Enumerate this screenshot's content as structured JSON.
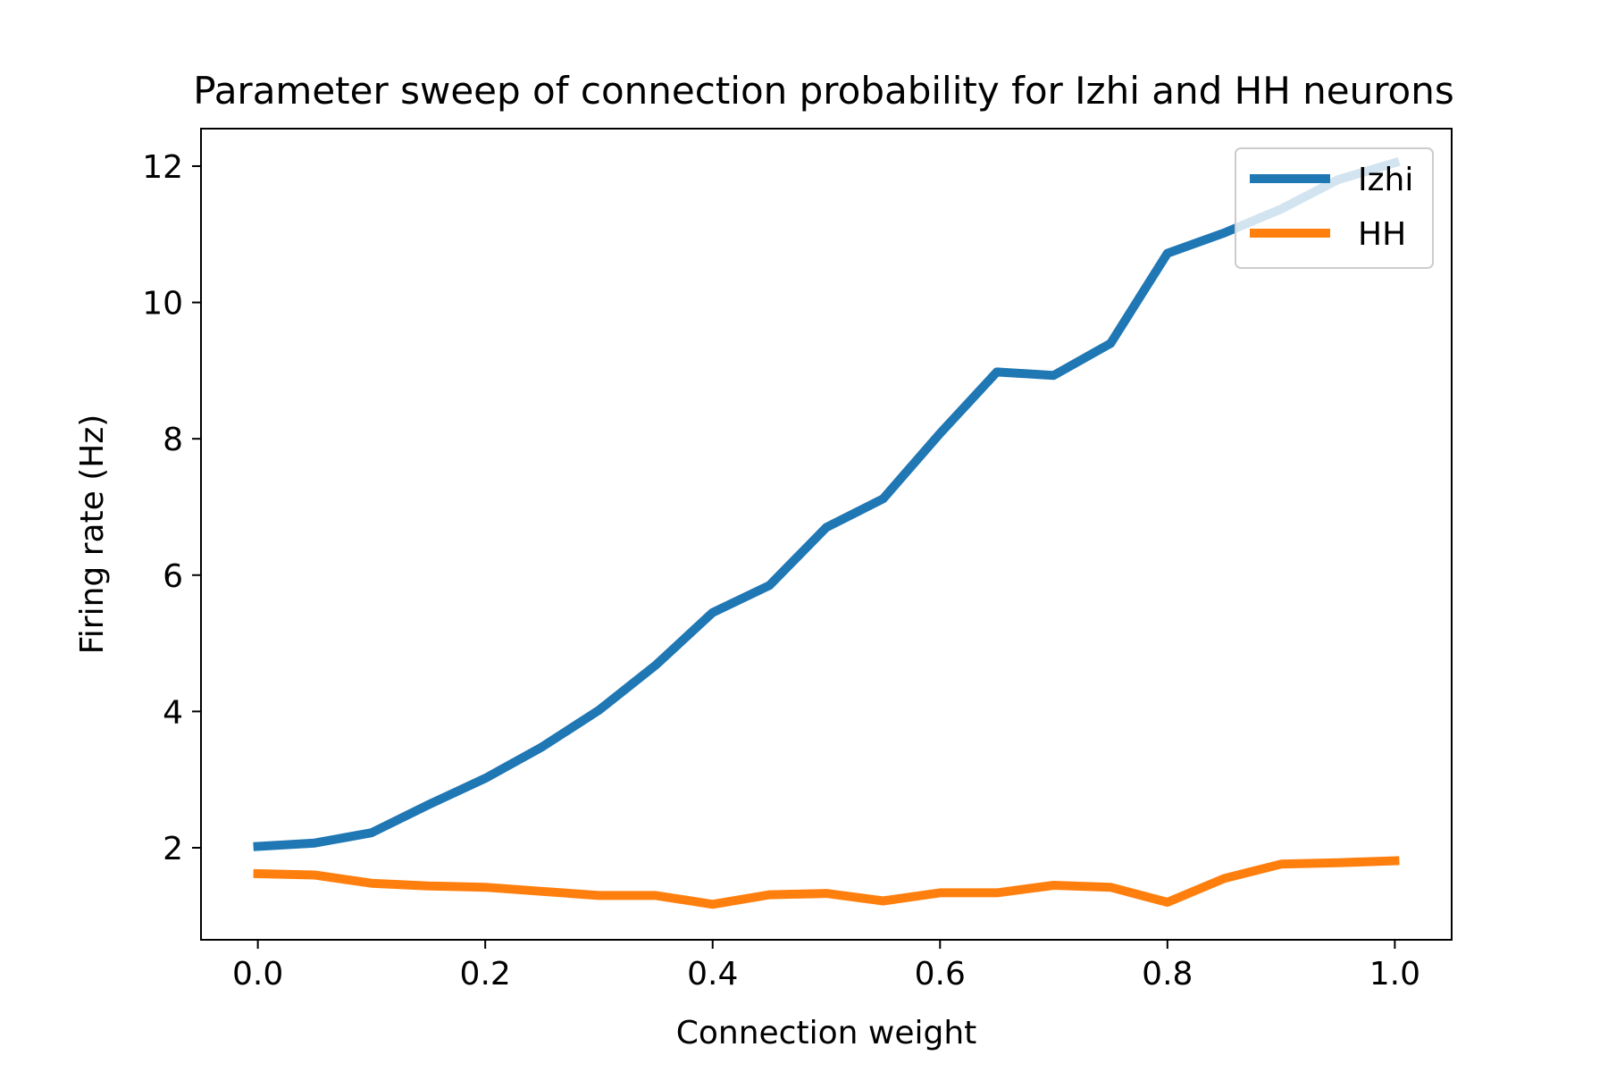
{
  "chart_data": {
    "type": "line",
    "title": "Parameter sweep of connection probability for Izhi and HH neurons",
    "xlabel": "Connection weight",
    "ylabel": "Firing rate (Hz)",
    "xlim": [
      -0.05,
      1.05
    ],
    "ylim": [
      0.65,
      12.55
    ],
    "xticks": [
      0.0,
      0.2,
      0.4,
      0.6,
      0.8,
      1.0
    ],
    "xtick_labels": [
      "0.0",
      "0.2",
      "0.4",
      "0.6",
      "0.8",
      "1.0"
    ],
    "yticks": [
      2,
      4,
      6,
      8,
      10,
      12
    ],
    "ytick_labels": [
      "2",
      "4",
      "6",
      "8",
      "10",
      "12"
    ],
    "grid": false,
    "legend_position": "top-right",
    "x": [
      0.0,
      0.05,
      0.1,
      0.15,
      0.2,
      0.25,
      0.3,
      0.35,
      0.4,
      0.45,
      0.5,
      0.55,
      0.6,
      0.65,
      0.7,
      0.75,
      0.8,
      0.85,
      0.9,
      0.95,
      1.0
    ],
    "series": [
      {
        "name": "Izhi",
        "color": "#1f77b4",
        "values": [
          2.02,
          2.07,
          2.22,
          2.63,
          3.02,
          3.48,
          4.02,
          4.68,
          5.45,
          5.85,
          6.7,
          7.12,
          8.08,
          8.98,
          8.93,
          9.4,
          10.72,
          11.02,
          11.37,
          11.8,
          12.05
        ]
      },
      {
        "name": "HH",
        "color": "#ff7f0e",
        "values": [
          1.62,
          1.6,
          1.48,
          1.44,
          1.42,
          1.36,
          1.3,
          1.3,
          1.17,
          1.31,
          1.33,
          1.22,
          1.34,
          1.34,
          1.45,
          1.42,
          1.2,
          1.55,
          1.76,
          1.78,
          1.81
        ]
      }
    ]
  }
}
